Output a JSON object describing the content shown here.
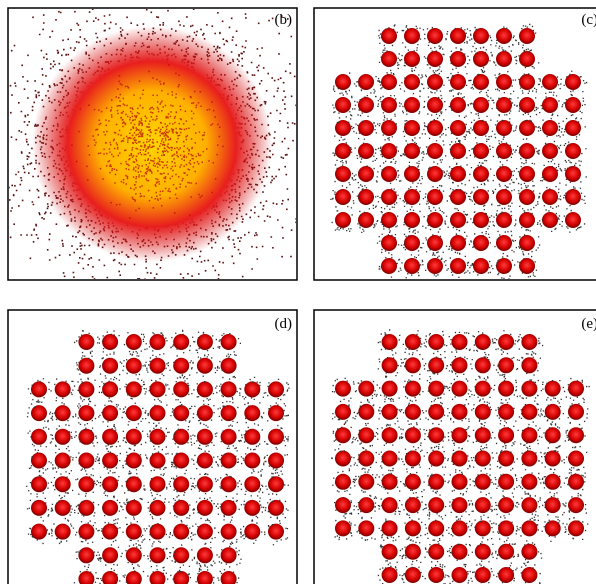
{
  "panels": [
    {
      "label": "(b)"
    },
    {
      "label": "(c)"
    },
    {
      "label": "(d)"
    },
    {
      "label": "(e)"
    }
  ]
}
